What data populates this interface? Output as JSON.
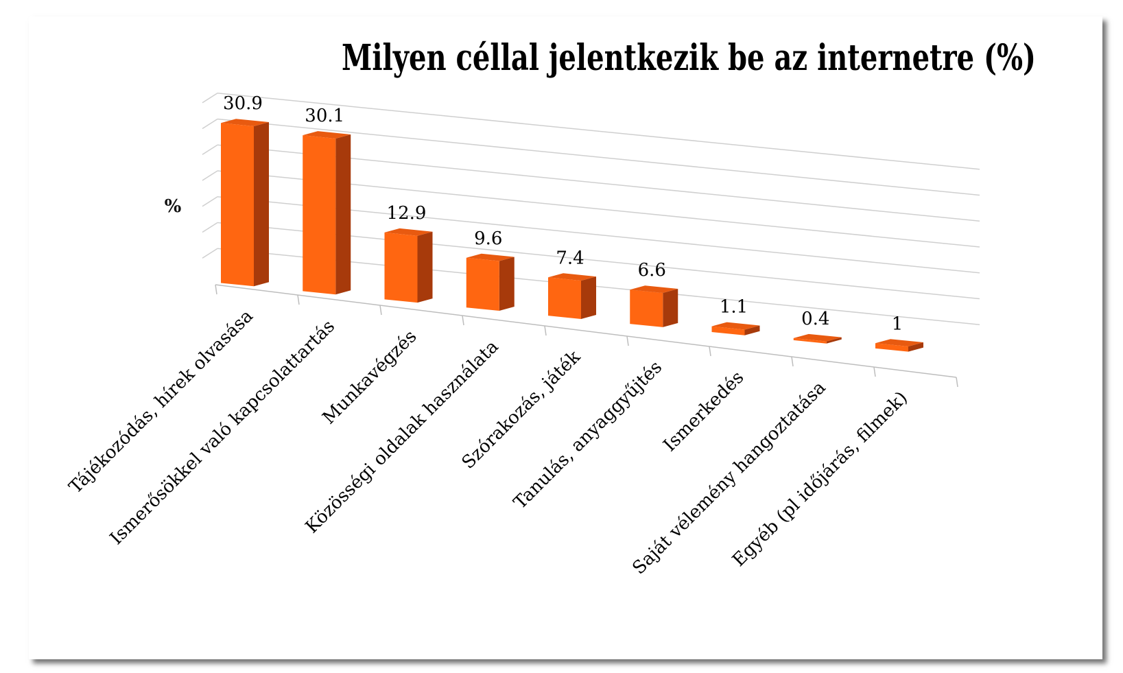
{
  "chart_data": {
    "type": "bar",
    "title": "Milyen céllal jelentkezik be az internetre (%)",
    "ylabel": "%",
    "xlabel": "",
    "ylim": [
      0,
      35
    ],
    "grid": true,
    "categories": [
      "Tájékozódás, hírek olvasása",
      "Ismerősökkel való kapcsolattartás",
      "Munkavégzés",
      "Közösségi oldalak használata",
      "Szórakozás, játék",
      "Tanulás, anyaggyűjtés",
      "Ismerkedés",
      "Saját vélemény hangoztatása",
      "Egyéb (pl időjárás, filmek)"
    ],
    "values": [
      30.9,
      30.1,
      12.9,
      9.6,
      7.4,
      6.6,
      1.1,
      0.4,
      1
    ],
    "data_labels": [
      "30.9",
      "30.1",
      "12.9",
      "9.6",
      "7.4",
      "6.6",
      "1.1",
      "0.4",
      "1"
    ],
    "colors": {
      "bar_front": "#ff6611",
      "bar_side": "#a73a0b",
      "bar_top": "#e85a10"
    }
  }
}
